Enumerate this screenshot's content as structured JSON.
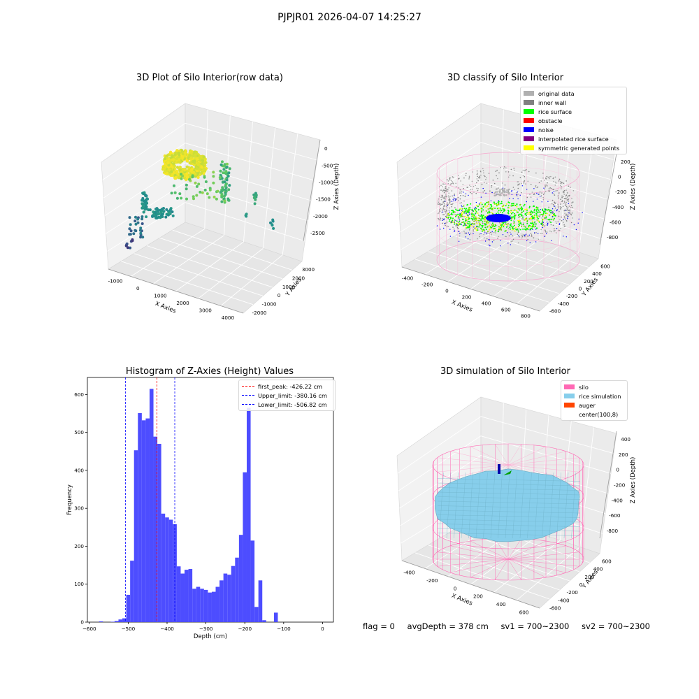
{
  "suptitle": "PJPJR01 2026-04-07 14:25:27",
  "panels": {
    "raw": {
      "title": "3D Plot of Silo Interior(row data)",
      "xlabel": "X Axies",
      "ylabel": "Y Axies",
      "zlabel": "Z Axies (Depth)",
      "xticks": [
        "-1000",
        "0",
        "1000",
        "2000",
        "3000",
        "4000"
      ],
      "yticks": [
        "-2000",
        "-1000",
        "0",
        "1000",
        "2000",
        "3000"
      ],
      "zticks": [
        "0",
        "-500",
        "-1000",
        "-1500",
        "-2000",
        "-2500"
      ]
    },
    "classify": {
      "title": "3D classify of Silo Interior",
      "xlabel": "X Axies",
      "ylabel": "Y Axies",
      "zlabel": "Z Axies (Depth)",
      "xticks": [
        "-400",
        "-200",
        "0",
        "200",
        "400",
        "600",
        "800"
      ],
      "yticks": [
        "-600",
        "-400",
        "-200",
        "0",
        "200",
        "400",
        "600"
      ],
      "zticks": [
        "200",
        "0",
        "-200",
        "-400",
        "-600",
        "-800"
      ],
      "legend": [
        {
          "label": "original data",
          "color": "#b0b0b0"
        },
        {
          "label": "inner wall",
          "color": "#808080"
        },
        {
          "label": "rice surface",
          "color": "#00ff00"
        },
        {
          "label": "obstacle",
          "color": "#ff0000"
        },
        {
          "label": "noise",
          "color": "#0000ff"
        },
        {
          "label": "interpolated rice surface",
          "color": "#800080"
        },
        {
          "label": "symmetric generated points",
          "color": "#ffff00"
        }
      ]
    },
    "simulation": {
      "title": "3D simulation of Silo Interior",
      "xlabel": "X Axies",
      "ylabel": "Y Axies",
      "zlabel": "Z Axies (Depth)",
      "xticks": [
        "-400",
        "-200",
        "0",
        "200",
        "400",
        "600"
      ],
      "yticks": [
        "-600",
        "-400",
        "-200",
        "0",
        "200",
        "400",
        "600"
      ],
      "zticks": [
        "400",
        "200",
        "0",
        "-200",
        "-400",
        "-600",
        "-800"
      ],
      "legend": [
        {
          "label": "silo",
          "color": "#ff69b4"
        },
        {
          "label": "rice simulation",
          "color": "#87ceeb"
        },
        {
          "label": "auger",
          "color": "#ff4500"
        },
        {
          "label": "center(100,8)",
          "color": ""
        }
      ]
    }
  },
  "footer": {
    "flag": "flag = 0",
    "avg_depth": "avgDepth = 378 cm",
    "sv1": "sv1 = 700~2300",
    "sv2": "sv2 = 700~2300"
  },
  "chart_data": [
    {
      "type": "scatter",
      "title": "3D Plot of Silo Interior(row data)",
      "xlabel": "X Axies",
      "ylabel": "Y Axies",
      "zlabel": "Z Axies (Depth)",
      "xlim": [
        -1500,
        4500
      ],
      "ylim": [
        -2500,
        3000
      ],
      "zlim": [
        -2700,
        100
      ],
      "colormap": "viridis"
    },
    {
      "type": "scatter",
      "title": "3D classify of Silo Interior",
      "xlabel": "X Axies",
      "ylabel": "Y Axies",
      "zlabel": "Z Axies (Depth)",
      "xlim": [
        -500,
        800
      ],
      "ylim": [
        -650,
        650
      ],
      "zlim": [
        -900,
        300
      ],
      "legend_position": "top-right",
      "series": [
        {
          "name": "original data",
          "color": "#b0b0b0"
        },
        {
          "name": "inner wall",
          "color": "#808080"
        },
        {
          "name": "rice surface",
          "color": "#00ff00"
        },
        {
          "name": "obstacle",
          "color": "#ff0000"
        },
        {
          "name": "noise",
          "color": "#0000ff"
        },
        {
          "name": "interpolated rice surface",
          "color": "#800080"
        },
        {
          "name": "symmetric generated points",
          "color": "#ffff00"
        }
      ]
    },
    {
      "type": "bar",
      "title": "Histogram of Z-Axies (Height) Values",
      "xlabel": "Depth (cm)",
      "ylabel": "Frequency",
      "xlim": [
        -605,
        28
      ],
      "ylim": [
        0,
        645
      ],
      "xticks": [
        -600,
        -500,
        -400,
        -300,
        -200,
        -100,
        0
      ],
      "yticks": [
        0,
        100,
        200,
        300,
        400,
        500,
        600
      ],
      "bar_color": "#4d4dff",
      "bin_start": -575,
      "bin_width": 10,
      "values": [
        2,
        0,
        0,
        1,
        3,
        7,
        10,
        72,
        162,
        453,
        551,
        532,
        537,
        615,
        489,
        470,
        286,
        276,
        270,
        258,
        147,
        128,
        138,
        140,
        88,
        93,
        88,
        85,
        78,
        80,
        93,
        110,
        128,
        125,
        148,
        170,
        230,
        395,
        565,
        215,
        40,
        110,
        5,
        0,
        0,
        25
      ],
      "vlines": [
        {
          "label": "first_peak: -426.22 cm",
          "x": -426.22,
          "color": "#ff0000"
        },
        {
          "label": "Upper_limit: -380.16 cm",
          "x": -380.16,
          "color": "#0000ff"
        },
        {
          "label": "Lower_limit: -506.82 cm",
          "x": -506.82,
          "color": "#0000ff"
        }
      ],
      "legend_position": "top-right"
    },
    {
      "type": "surface",
      "title": "3D simulation of Silo Interior",
      "xlabel": "X Axies",
      "ylabel": "Y Axies",
      "zlabel": "Z Axies (Depth)",
      "xlim": [
        -500,
        700
      ],
      "ylim": [
        -650,
        650
      ],
      "zlim": [
        -900,
        450
      ],
      "legend_position": "top-right",
      "series": [
        {
          "name": "silo",
          "color": "#ff69b4"
        },
        {
          "name": "rice simulation",
          "color": "#87ceeb"
        },
        {
          "name": "auger",
          "color": "#ff4500"
        },
        {
          "name": "center(100,8)",
          "color": ""
        }
      ]
    }
  ]
}
